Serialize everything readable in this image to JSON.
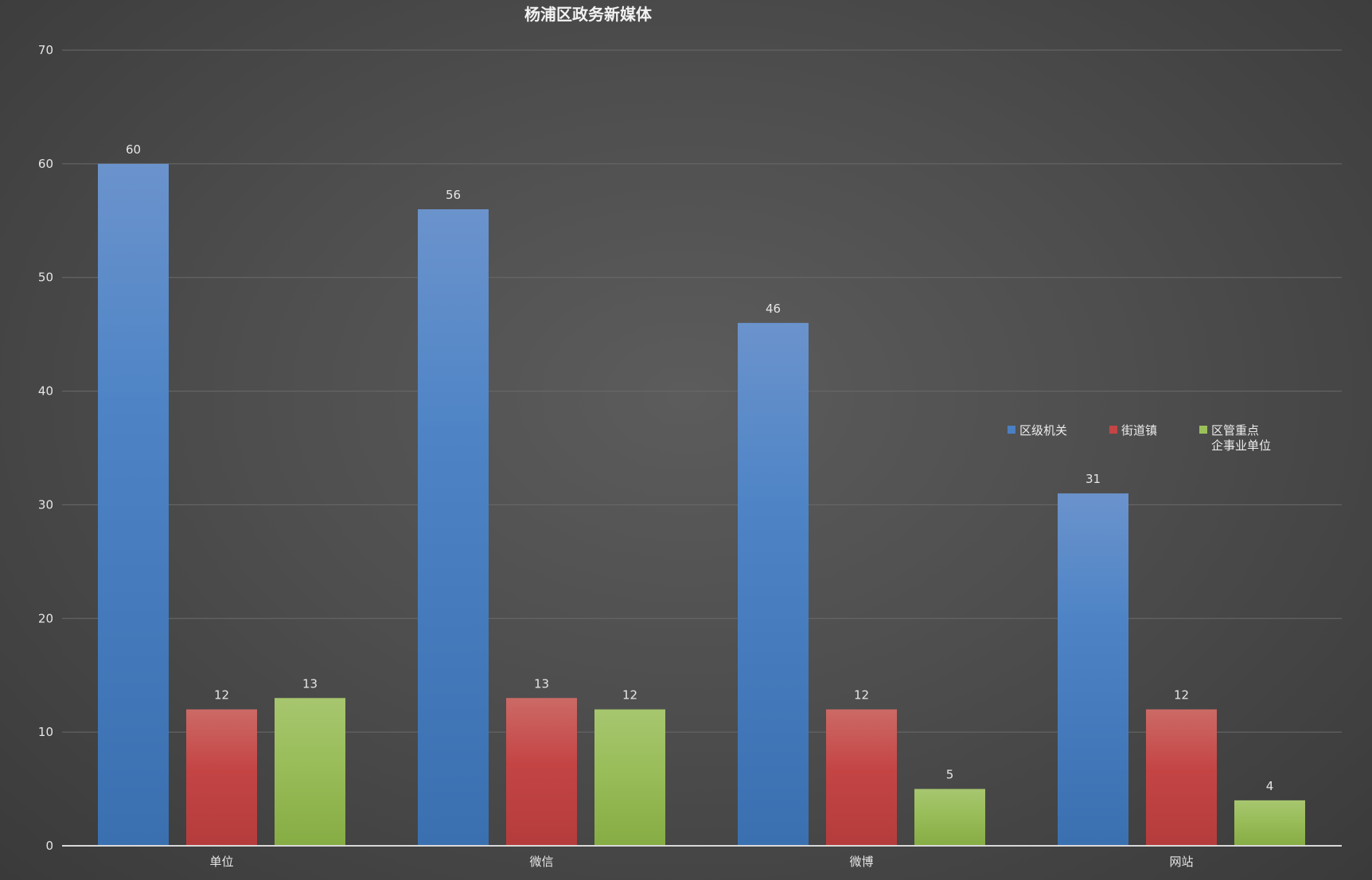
{
  "chart_data": {
    "type": "bar",
    "title": "杨浦区政务新媒体",
    "categories": [
      "单位",
      "微信",
      "微博",
      "网站"
    ],
    "series": [
      {
        "name": "区级机关",
        "values": [
          60,
          56,
          46,
          31
        ],
        "color": "#4a7fc2"
      },
      {
        "name": "街道镇",
        "values": [
          12,
          13,
          12,
          12
        ],
        "color": "#c54444"
      },
      {
        "name": "区管重点\n企事业单位",
        "values": [
          13,
          12,
          5,
          4
        ],
        "color": "#9bc05a"
      }
    ],
    "ylim": [
      0,
      70
    ],
    "yticks": [
      0,
      10,
      20,
      30,
      40,
      50,
      60,
      70
    ],
    "grid": true,
    "legend_position": "right"
  }
}
